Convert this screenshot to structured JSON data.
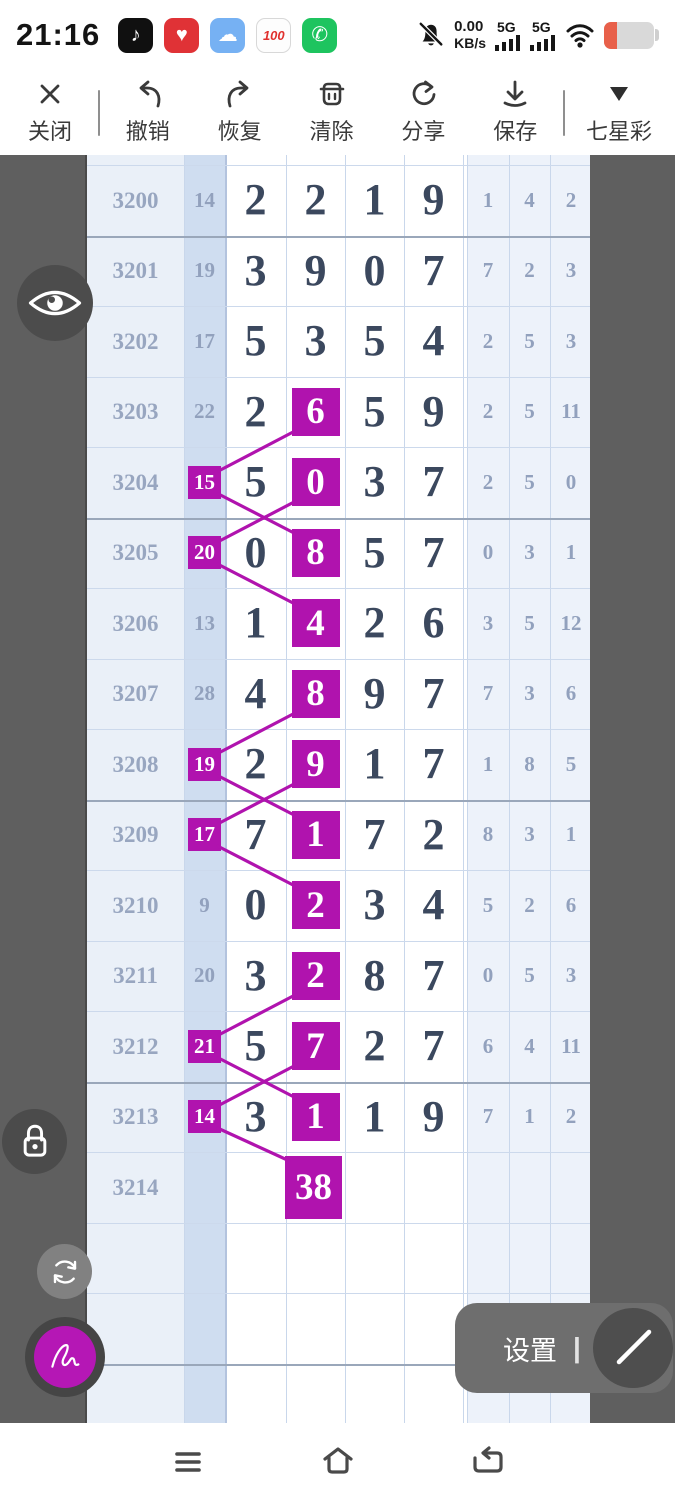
{
  "status_bar": {
    "time": "21:16",
    "app_icons": [
      {
        "name": "tiktok-icon",
        "glyph": "♪"
      },
      {
        "name": "heart-app-icon",
        "glyph": "♥"
      },
      {
        "name": "weather-app-icon",
        "glyph": "☁"
      },
      {
        "name": "score-100-icon",
        "glyph": "100"
      },
      {
        "name": "phone-app-icon",
        "glyph": "✆"
      }
    ],
    "speed_value": "0.00",
    "speed_unit": "KB/s",
    "net1": "5G",
    "net2": "5G"
  },
  "toolbar": {
    "close_label": "关闭",
    "undo_label": "撤销",
    "redo_label": "恢复",
    "clear_label": "清除",
    "share_label": "分享",
    "save_label": "保存",
    "lottery_label": "七星彩"
  },
  "table": {
    "rows": [
      {
        "period": "3200",
        "sum": "14",
        "digits": [
          "2",
          "2",
          "1",
          "9"
        ],
        "extras": [
          "1",
          "4",
          "2"
        ],
        "sum_hl": false,
        "digit_hl": -1
      },
      {
        "period": "3201",
        "sum": "19",
        "digits": [
          "3",
          "9",
          "0",
          "7"
        ],
        "extras": [
          "7",
          "2",
          "3"
        ],
        "sum_hl": false,
        "digit_hl": -1
      },
      {
        "period": "3202",
        "sum": "17",
        "digits": [
          "5",
          "3",
          "5",
          "4"
        ],
        "extras": [
          "2",
          "5",
          "3"
        ],
        "sum_hl": false,
        "digit_hl": -1
      },
      {
        "period": "3203",
        "sum": "22",
        "digits": [
          "2",
          "6",
          "5",
          "9"
        ],
        "extras": [
          "2",
          "5",
          "11"
        ],
        "sum_hl": false,
        "digit_hl": 1
      },
      {
        "period": "3204",
        "sum": "15",
        "digits": [
          "5",
          "0",
          "3",
          "7"
        ],
        "extras": [
          "2",
          "5",
          "0"
        ],
        "sum_hl": true,
        "digit_hl": 1
      },
      {
        "period": "3205",
        "sum": "20",
        "digits": [
          "0",
          "8",
          "5",
          "7"
        ],
        "extras": [
          "0",
          "3",
          "1"
        ],
        "sum_hl": true,
        "digit_hl": 1
      },
      {
        "period": "3206",
        "sum": "13",
        "digits": [
          "1",
          "4",
          "2",
          "6"
        ],
        "extras": [
          "3",
          "5",
          "12"
        ],
        "sum_hl": false,
        "digit_hl": 1
      },
      {
        "period": "3207",
        "sum": "28",
        "digits": [
          "4",
          "8",
          "9",
          "7"
        ],
        "extras": [
          "7",
          "3",
          "6"
        ],
        "sum_hl": false,
        "digit_hl": 1
      },
      {
        "period": "3208",
        "sum": "19",
        "digits": [
          "2",
          "9",
          "1",
          "7"
        ],
        "extras": [
          "1",
          "8",
          "5"
        ],
        "sum_hl": true,
        "digit_hl": 1
      },
      {
        "period": "3209",
        "sum": "17",
        "digits": [
          "7",
          "1",
          "7",
          "2"
        ],
        "extras": [
          "8",
          "3",
          "1"
        ],
        "sum_hl": true,
        "digit_hl": 1
      },
      {
        "period": "3210",
        "sum": "9",
        "digits": [
          "0",
          "2",
          "3",
          "4"
        ],
        "extras": [
          "5",
          "2",
          "6"
        ],
        "sum_hl": false,
        "digit_hl": 1
      },
      {
        "period": "3211",
        "sum": "20",
        "digits": [
          "3",
          "2",
          "8",
          "7"
        ],
        "extras": [
          "0",
          "5",
          "3"
        ],
        "sum_hl": false,
        "digit_hl": 1
      },
      {
        "period": "3212",
        "sum": "21",
        "digits": [
          "5",
          "7",
          "2",
          "7"
        ],
        "extras": [
          "6",
          "4",
          "11"
        ],
        "sum_hl": true,
        "digit_hl": 1
      },
      {
        "period": "3213",
        "sum": "14",
        "digits": [
          "3",
          "1",
          "1",
          "9"
        ],
        "extras": [
          "7",
          "1",
          "2"
        ],
        "sum_hl": true,
        "digit_hl": 1
      },
      {
        "period": "3214",
        "sum": "",
        "digits": [
          "",
          "",
          "",
          ""
        ],
        "extras": [
          "",
          "",
          ""
        ],
        "sum_hl": false,
        "digit_hl": -1,
        "special": {
          "col": 1,
          "value": "38"
        }
      }
    ]
  },
  "annotations": {
    "color": "#b013ae",
    "connectors": [
      {
        "from": {
          "row": 3203,
          "cell": "d"
        },
        "to": {
          "row": 3204,
          "cell": "s"
        }
      },
      {
        "from": {
          "row": 3204,
          "cell": "s"
        },
        "to": {
          "row": 3205,
          "cell": "d"
        }
      },
      {
        "from": {
          "row": 3204,
          "cell": "d"
        },
        "to": {
          "row": 3205,
          "cell": "s"
        }
      },
      {
        "from": {
          "row": 3205,
          "cell": "s"
        },
        "to": {
          "row": 3206,
          "cell": "d"
        }
      },
      {
        "from": {
          "row": 3207,
          "cell": "d"
        },
        "to": {
          "row": 3208,
          "cell": "s"
        }
      },
      {
        "from": {
          "row": 3208,
          "cell": "s"
        },
        "to": {
          "row": 3209,
          "cell": "d"
        }
      },
      {
        "from": {
          "row": 3208,
          "cell": "d"
        },
        "to": {
          "row": 3209,
          "cell": "s"
        }
      },
      {
        "from": {
          "row": 3209,
          "cell": "s"
        },
        "to": {
          "row": 3210,
          "cell": "d"
        }
      },
      {
        "from": {
          "row": 3211,
          "cell": "d"
        },
        "to": {
          "row": 3212,
          "cell": "s"
        }
      },
      {
        "from": {
          "row": 3212,
          "cell": "s"
        },
        "to": {
          "row": 3213,
          "cell": "d"
        }
      },
      {
        "from": {
          "row": 3212,
          "cell": "d"
        },
        "to": {
          "row": 3213,
          "cell": "s"
        }
      },
      {
        "from": {
          "row": 3213,
          "cell": "s"
        },
        "to": {
          "row": 3214,
          "cell": "d"
        }
      }
    ]
  },
  "settings_panel": {
    "label": "设置",
    "divider": "|"
  },
  "colors": {
    "accent": "#b013ae",
    "overlay": "#5f5f5f",
    "grid": "#ccd9ec",
    "grid_heavy": "#9aa7ba"
  }
}
